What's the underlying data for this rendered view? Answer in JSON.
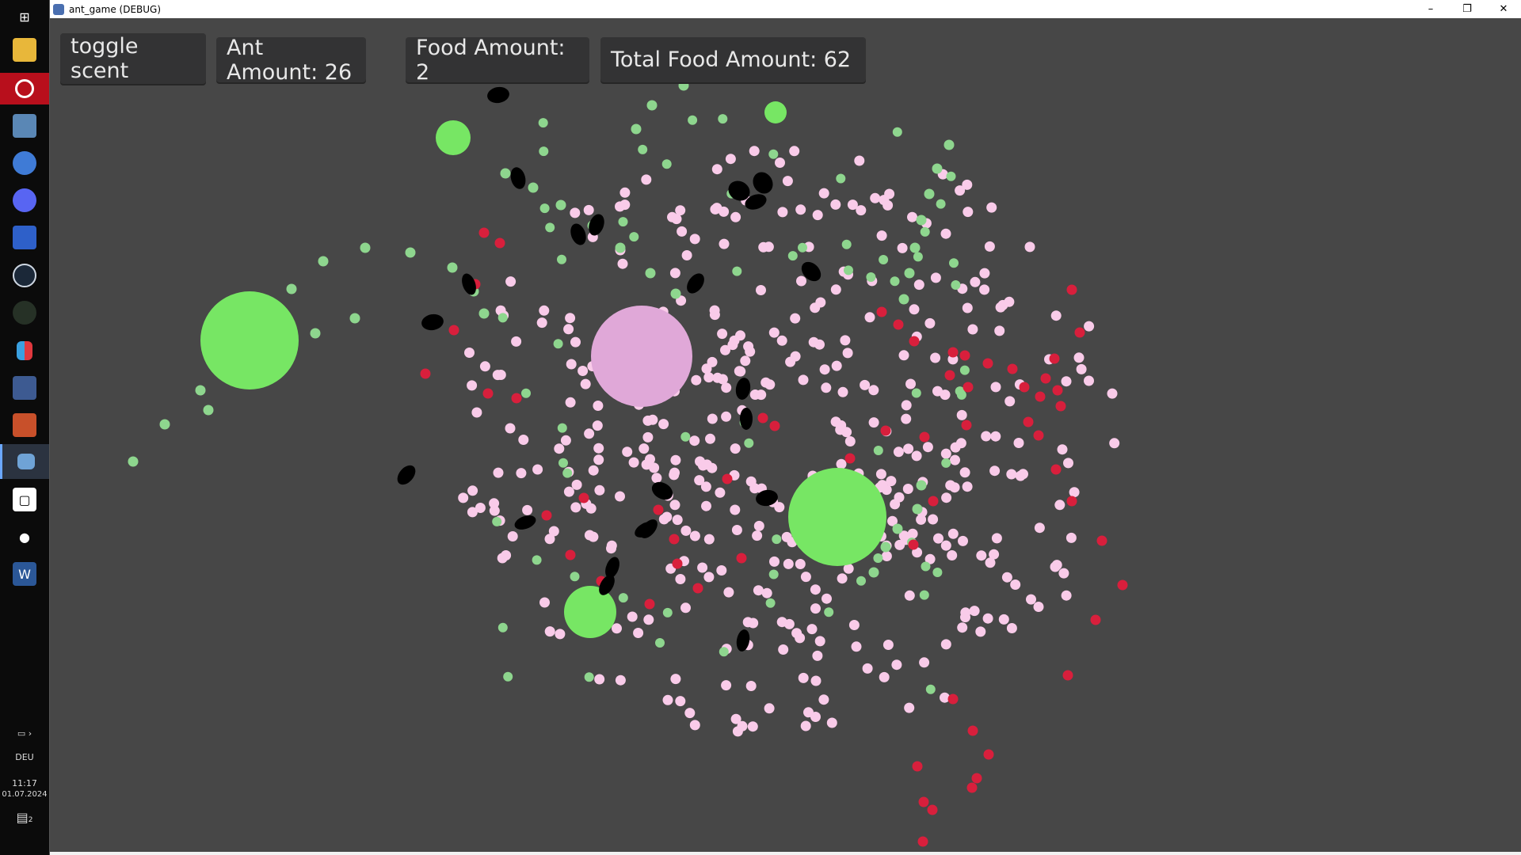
{
  "window": {
    "title": "ant_game (DEBUG)",
    "min_label": "–",
    "restore_label": "❐",
    "close_label": "✕"
  },
  "hud": {
    "toggle_label": "toggle scent",
    "ant_amount": "Ant Amount: 26",
    "food_amount": "Food Amount: 2",
    "total_food": "Total Food Amount: 62"
  },
  "tray": {
    "lang": "DEU",
    "time": "11:17",
    "date": "01.07.2024",
    "notifications": "2"
  },
  "colors": {
    "background": "#474747",
    "food": "#77e664",
    "nest": "#e0a8d8",
    "ant": "#000000",
    "scent_home": "#f9cbe9",
    "scent_food": "#8ed68e",
    "scent_danger": "#d81f3c",
    "hud_bg": "#333334"
  },
  "taskbar_icons": [
    "windows-icon",
    "file-explorer-icon",
    "opera-icon",
    "notes-icon",
    "paint-icon",
    "discord-icon",
    "image-editor-icon",
    "steam-icon",
    "game-icon",
    "nintendo-icon",
    "document-icon",
    "game2-icon",
    "godot-icon",
    "twitch-icon",
    "chat-icon",
    "word-icon"
  ]
}
